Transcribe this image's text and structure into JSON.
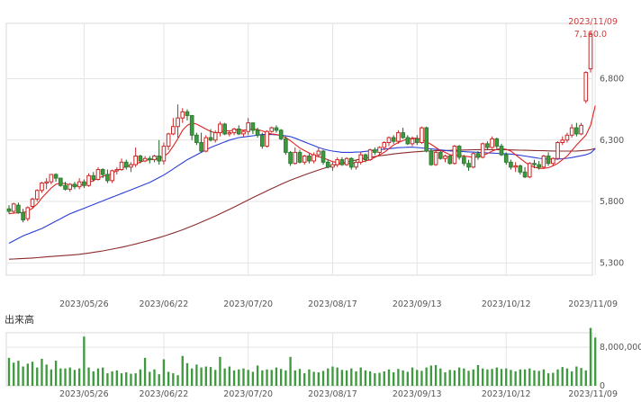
{
  "chart_data": {
    "type": "candlestick",
    "main": {
      "y_ticks": [
        5300,
        5800,
        6300,
        6800
      ],
      "y_tick_labels": [
        "5,300",
        "5,800",
        "6,300",
        "6,800"
      ],
      "ylim": [
        5200,
        7250
      ],
      "last_date": "2023/11/09",
      "last_value": 7160,
      "last_value_label": "7,160.0"
    },
    "x_ticks": [
      {
        "index": 16,
        "label": "2023/05/26"
      },
      {
        "index": 33,
        "label": "2023/06/22"
      },
      {
        "index": 51,
        "label": "2023/07/20"
      },
      {
        "index": 69,
        "label": "2023/08/17"
      },
      {
        "index": 87,
        "label": "2023/09/13"
      },
      {
        "index": 106,
        "label": "2023/10/12"
      },
      {
        "index": 125,
        "label": "2023/11/09"
      }
    ],
    "candles": [
      [
        5740,
        5770,
        5700,
        5720
      ],
      [
        5720,
        5790,
        5700,
        5780
      ],
      [
        5770,
        5790,
        5700,
        5710
      ],
      [
        5710,
        5740,
        5630,
        5650
      ],
      [
        5660,
        5760,
        5640,
        5750
      ],
      [
        5760,
        5830,
        5740,
        5820
      ],
      [
        5820,
        5900,
        5800,
        5890
      ],
      [
        5890,
        5960,
        5870,
        5950
      ],
      [
        5950,
        5990,
        5900,
        5960
      ],
      [
        5960,
        6020,
        5940,
        6020
      ],
      [
        6020,
        6030,
        5960,
        5990
      ],
      [
        5990,
        5990,
        5920,
        5930
      ],
      [
        5930,
        5960,
        5890,
        5900
      ],
      [
        5900,
        5950,
        5880,
        5940
      ],
      [
        5940,
        5960,
        5900,
        5920
      ],
      [
        5920,
        5990,
        5900,
        5960
      ],
      [
        5960,
        5980,
        5910,
        5930
      ],
      [
        5930,
        6030,
        5920,
        6010
      ],
      [
        6010,
        6040,
        5960,
        5980
      ],
      [
        5980,
        6080,
        5970,
        6060
      ],
      [
        6060,
        6070,
        5990,
        6020
      ],
      [
        6020,
        6060,
        5950,
        5970
      ],
      [
        5970,
        6060,
        5950,
        6050
      ],
      [
        6050,
        6080,
        6020,
        6060
      ],
      [
        6060,
        6150,
        6050,
        6120
      ],
      [
        6120,
        6140,
        6060,
        6080
      ],
      [
        6080,
        6120,
        6040,
        6100
      ],
      [
        6100,
        6240,
        6080,
        6170
      ],
      [
        6170,
        6180,
        6110,
        6130
      ],
      [
        6130,
        6170,
        6120,
        6150
      ],
      [
        6150,
        6170,
        6110,
        6140
      ],
      [
        6140,
        6180,
        6120,
        6170
      ],
      [
        6170,
        6300,
        6100,
        6130
      ],
      [
        6130,
        6280,
        6100,
        6250
      ],
      [
        6250,
        6360,
        6220,
        6350
      ],
      [
        6350,
        6480,
        6340,
        6410
      ],
      [
        6410,
        6590,
        6320,
        6480
      ],
      [
        6480,
        6560,
        6440,
        6530
      ],
      [
        6530,
        6550,
        6460,
        6500
      ],
      [
        6500,
        6500,
        6300,
        6340
      ],
      [
        6340,
        6360,
        6260,
        6280
      ],
      [
        6280,
        6360,
        6200,
        6210
      ],
      [
        6210,
        6340,
        6200,
        6320
      ],
      [
        6320,
        6390,
        6290,
        6300
      ],
      [
        6300,
        6380,
        6280,
        6360
      ],
      [
        6360,
        6450,
        6330,
        6430
      ],
      [
        6430,
        6440,
        6340,
        6350
      ],
      [
        6350,
        6380,
        6330,
        6360
      ],
      [
        6360,
        6400,
        6340,
        6390
      ],
      [
        6390,
        6420,
        6340,
        6350
      ],
      [
        6350,
        6380,
        6330,
        6370
      ],
      [
        6370,
        6480,
        6340,
        6440
      ],
      [
        6440,
        6440,
        6350,
        6380
      ],
      [
        6380,
        6400,
        6320,
        6340
      ],
      [
        6340,
        6360,
        6230,
        6250
      ],
      [
        6250,
        6380,
        6240,
        6370
      ],
      [
        6370,
        6410,
        6360,
        6400
      ],
      [
        6400,
        6420,
        6360,
        6380
      ],
      [
        6380,
        6390,
        6300,
        6310
      ],
      [
        6310,
        6330,
        6180,
        6200
      ],
      [
        6200,
        6210,
        6090,
        6110
      ],
      [
        6110,
        6240,
        6100,
        6200
      ],
      [
        6200,
        6220,
        6110,
        6120
      ],
      [
        6120,
        6180,
        6100,
        6170
      ],
      [
        6170,
        6190,
        6110,
        6130
      ],
      [
        6130,
        6200,
        6110,
        6180
      ],
      [
        6180,
        6240,
        6160,
        6210
      ],
      [
        6210,
        6220,
        6100,
        6120
      ],
      [
        6120,
        6140,
        6070,
        6080
      ],
      [
        6080,
        6120,
        6050,
        6100
      ],
      [
        6100,
        6160,
        6080,
        6140
      ],
      [
        6140,
        6160,
        6090,
        6100
      ],
      [
        6100,
        6160,
        6090,
        6150
      ],
      [
        6150,
        6160,
        6060,
        6080
      ],
      [
        6080,
        6140,
        6060,
        6120
      ],
      [
        6120,
        6200,
        6100,
        6180
      ],
      [
        6180,
        6190,
        6120,
        6140
      ],
      [
        6140,
        6230,
        6130,
        6220
      ],
      [
        6220,
        6240,
        6180,
        6200
      ],
      [
        6200,
        6250,
        6170,
        6240
      ],
      [
        6240,
        6290,
        6220,
        6280
      ],
      [
        6280,
        6330,
        6250,
        6320
      ],
      [
        6320,
        6340,
        6270,
        6290
      ],
      [
        6290,
        6380,
        6270,
        6360
      ],
      [
        6360,
        6400,
        6310,
        6320
      ],
      [
        6320,
        6340,
        6260,
        6270
      ],
      [
        6270,
        6330,
        6250,
        6310
      ],
      [
        6310,
        6340,
        6260,
        6280
      ],
      [
        6280,
        6410,
        6270,
        6400
      ],
      [
        6400,
        6410,
        6200,
        6210
      ],
      [
        6210,
        6230,
        6090,
        6100
      ],
      [
        6100,
        6220,
        6090,
        6200
      ],
      [
        6200,
        6210,
        6140,
        6150
      ],
      [
        6150,
        6180,
        6120,
        6170
      ],
      [
        6170,
        6180,
        6100,
        6110
      ],
      [
        6110,
        6260,
        6100,
        6250
      ],
      [
        6250,
        6260,
        6140,
        6160
      ],
      [
        6160,
        6180,
        6090,
        6110
      ],
      [
        6110,
        6140,
        6050,
        6080
      ],
      [
        6080,
        6200,
        6070,
        6190
      ],
      [
        6190,
        6210,
        6140,
        6160
      ],
      [
        6160,
        6280,
        6150,
        6270
      ],
      [
        6270,
        6290,
        6220,
        6240
      ],
      [
        6240,
        6330,
        6230,
        6310
      ],
      [
        6310,
        6320,
        6230,
        6250
      ],
      [
        6250,
        6270,
        6170,
        6180
      ],
      [
        6180,
        6200,
        6100,
        6120
      ],
      [
        6120,
        6140,
        6060,
        6080
      ],
      [
        6080,
        6120,
        6040,
        6090
      ],
      [
        6090,
        6100,
        6020,
        6040
      ],
      [
        6040,
        6080,
        5990,
        6000
      ],
      [
        6000,
        6120,
        5990,
        6110
      ],
      [
        6110,
        6140,
        6070,
        6100
      ],
      [
        6100,
        6130,
        6060,
        6080
      ],
      [
        6080,
        6180,
        6070,
        6170
      ],
      [
        6170,
        6200,
        6090,
        6110
      ],
      [
        6110,
        6160,
        6090,
        6150
      ],
      [
        6150,
        6290,
        6140,
        6280
      ],
      [
        6280,
        6330,
        6260,
        6300
      ],
      [
        6300,
        6360,
        6280,
        6340
      ],
      [
        6340,
        6430,
        6320,
        6400
      ],
      [
        6400,
        6440,
        6330,
        6350
      ],
      [
        6350,
        6440,
        6340,
        6420
      ],
      [
        6620,
        6860,
        6600,
        6850
      ],
      [
        6880,
        7180,
        6850,
        7160
      ]
    ],
    "ma_short": [
      5700,
      5705,
      5708,
      5710,
      5720,
      5745,
      5780,
      5830,
      5870,
      5910,
      5940,
      5950,
      5945,
      5935,
      5928,
      5930,
      5940,
      5955,
      5970,
      5990,
      6005,
      6015,
      6030,
      6050,
      6070,
      6085,
      6095,
      6105,
      6120,
      6135,
      6140,
      6145,
      6150,
      6165,
      6195,
      6250,
      6310,
      6380,
      6420,
      6440,
      6430,
      6410,
      6390,
      6370,
      6360,
      6365,
      6375,
      6375,
      6380,
      6385,
      6380,
      6385,
      6390,
      6385,
      6375,
      6360,
      6350,
      6345,
      6335,
      6320,
      6295,
      6265,
      6235,
      6215,
      6195,
      6175,
      6165,
      6155,
      6140,
      6125,
      6115,
      6110,
      6110,
      6110,
      6115,
      6120,
      6130,
      6140,
      6160,
      6180,
      6200,
      6230,
      6260,
      6280,
      6295,
      6310,
      6315,
      6315,
      6305,
      6285,
      6265,
      6240,
      6215,
      6200,
      6180,
      6175,
      6175,
      6170,
      6165,
      6160,
      6165,
      6175,
      6190,
      6210,
      6225,
      6230,
      6225,
      6210,
      6180,
      6150,
      6120,
      6095,
      6080,
      6070,
      6070,
      6075,
      6090,
      6110,
      6140,
      6170,
      6215,
      6260,
      6300,
      6340,
      6420,
      6580
    ],
    "ma_mid": [
      5460,
      5480,
      5500,
      5520,
      5535,
      5550,
      5565,
      5580,
      5600,
      5620,
      5640,
      5660,
      5680,
      5700,
      5715,
      5730,
      5745,
      5760,
      5775,
      5790,
      5805,
      5820,
      5835,
      5850,
      5865,
      5880,
      5895,
      5910,
      5925,
      5940,
      5955,
      5975,
      5995,
      6015,
      6040,
      6065,
      6090,
      6115,
      6140,
      6160,
      6180,
      6200,
      6220,
      6240,
      6255,
      6270,
      6285,
      6300,
      6310,
      6320,
      6325,
      6330,
      6335,
      6340,
      6345,
      6345,
      6345,
      6343,
      6340,
      6335,
      6328,
      6315,
      6300,
      6285,
      6270,
      6255,
      6240,
      6228,
      6218,
      6210,
      6205,
      6200,
      6200,
      6200,
      6202,
      6204,
      6208,
      6212,
      6218,
      6222,
      6226,
      6230,
      6234,
      6238,
      6240,
      6242,
      6242,
      6240,
      6236,
      6232,
      6228,
      6224,
      6220,
      6216,
      6212,
      6210,
      6208,
      6206,
      6204,
      6202,
      6200,
      6198,
      6196,
      6194,
      6192,
      6190,
      6188,
      6186,
      6182,
      6176,
      6170,
      6164,
      6158,
      6152,
      6148,
      6146,
      6145,
      6146,
      6148,
      6152,
      6158,
      6165,
      6172,
      6180,
      6195,
      6230
    ],
    "ma_long": [
      5330,
      5332,
      5334,
      5336,
      5338,
      5340,
      5343,
      5346,
      5349,
      5352,
      5355,
      5358,
      5360,
      5363,
      5366,
      5370,
      5375,
      5380,
      5386,
      5392,
      5398,
      5405,
      5412,
      5420,
      5428,
      5436,
      5445,
      5454,
      5464,
      5474,
      5484,
      5495,
      5506,
      5518,
      5530,
      5543,
      5556,
      5570,
      5585,
      5600,
      5616,
      5632,
      5648,
      5665,
      5682,
      5700,
      5718,
      5736,
      5755,
      5774,
      5793,
      5812,
      5831,
      5850,
      5868,
      5886,
      5904,
      5922,
      5940,
      5957,
      5973,
      5988,
      6002,
      6016,
      6030,
      6043,
      6056,
      6068,
      6080,
      6091,
      6102,
      6112,
      6121,
      6130,
      6138,
      6146,
      6153,
      6160,
      6166,
      6172,
      6177,
      6182,
      6187,
      6191,
      6195,
      6199,
      6202,
      6205,
      6208,
      6210,
      6212,
      6213,
      6214,
      6215,
      6216,
      6217,
      6218,
      6219,
      6220,
      6221,
      6222,
      6222,
      6222,
      6222,
      6222,
      6222,
      6221,
      6220,
      6219,
      6218,
      6217,
      6216,
      6215,
      6214,
      6213,
      6212,
      6211,
      6210,
      6210,
      6210,
      6210,
      6211,
      6213,
      6216,
      6222,
      6232
    ],
    "volume": {
      "section_label": "出来高",
      "y_ticks": [
        0,
        8000000
      ],
      "y_tick_labels": [
        "0",
        "8,000,000"
      ],
      "ylim": [
        0,
        11000000
      ],
      "values": [
        5800000,
        4800000,
        5200000,
        4000000,
        4600000,
        5000000,
        3800000,
        5600000,
        4400000,
        3400000,
        5200000,
        3600000,
        3600000,
        3800000,
        3300000,
        3600000,
        10200000,
        3800000,
        3000000,
        3600000,
        3800000,
        2600000,
        3000000,
        3200000,
        2600000,
        2800000,
        2500000,
        2600000,
        3400000,
        5800000,
        2900000,
        3400000,
        2400000,
        5500000,
        2900000,
        2600000,
        2200000,
        6200000,
        4700000,
        3600000,
        4400000,
        3800000,
        4000000,
        3900000,
        3300000,
        6000000,
        3600000,
        4000000,
        3200000,
        3400000,
        3600000,
        3300000,
        2900000,
        4200000,
        3200000,
        3400000,
        3300000,
        3800000,
        3500000,
        3200000,
        6000000,
        3200000,
        3500000,
        2600000,
        3400000,
        2900000,
        2800000,
        3100000,
        3600000,
        4000000,
        3800000,
        3300000,
        3200000,
        3600000,
        3000000,
        3800000,
        3200000,
        3000000,
        2600000,
        2700000,
        3000000,
        3400000,
        2800000,
        3500000,
        3200000,
        2900000,
        3800000,
        3300000,
        3100000,
        3800000,
        4200000,
        4300000,
        3600000,
        2800000,
        3300000,
        3200000,
        3800000,
        3600000,
        3100000,
        3400000,
        4300000,
        3600000,
        3400000,
        3500000,
        3800000,
        3500000,
        3600000,
        3300000,
        3000000,
        3400000,
        3400000,
        3600000,
        3200000,
        3100000,
        3400000,
        2600000,
        2700000,
        3400000,
        3900000,
        3600000,
        3000000,
        4000000,
        3700000,
        3200000,
        12000000,
        10000000
      ]
    }
  }
}
